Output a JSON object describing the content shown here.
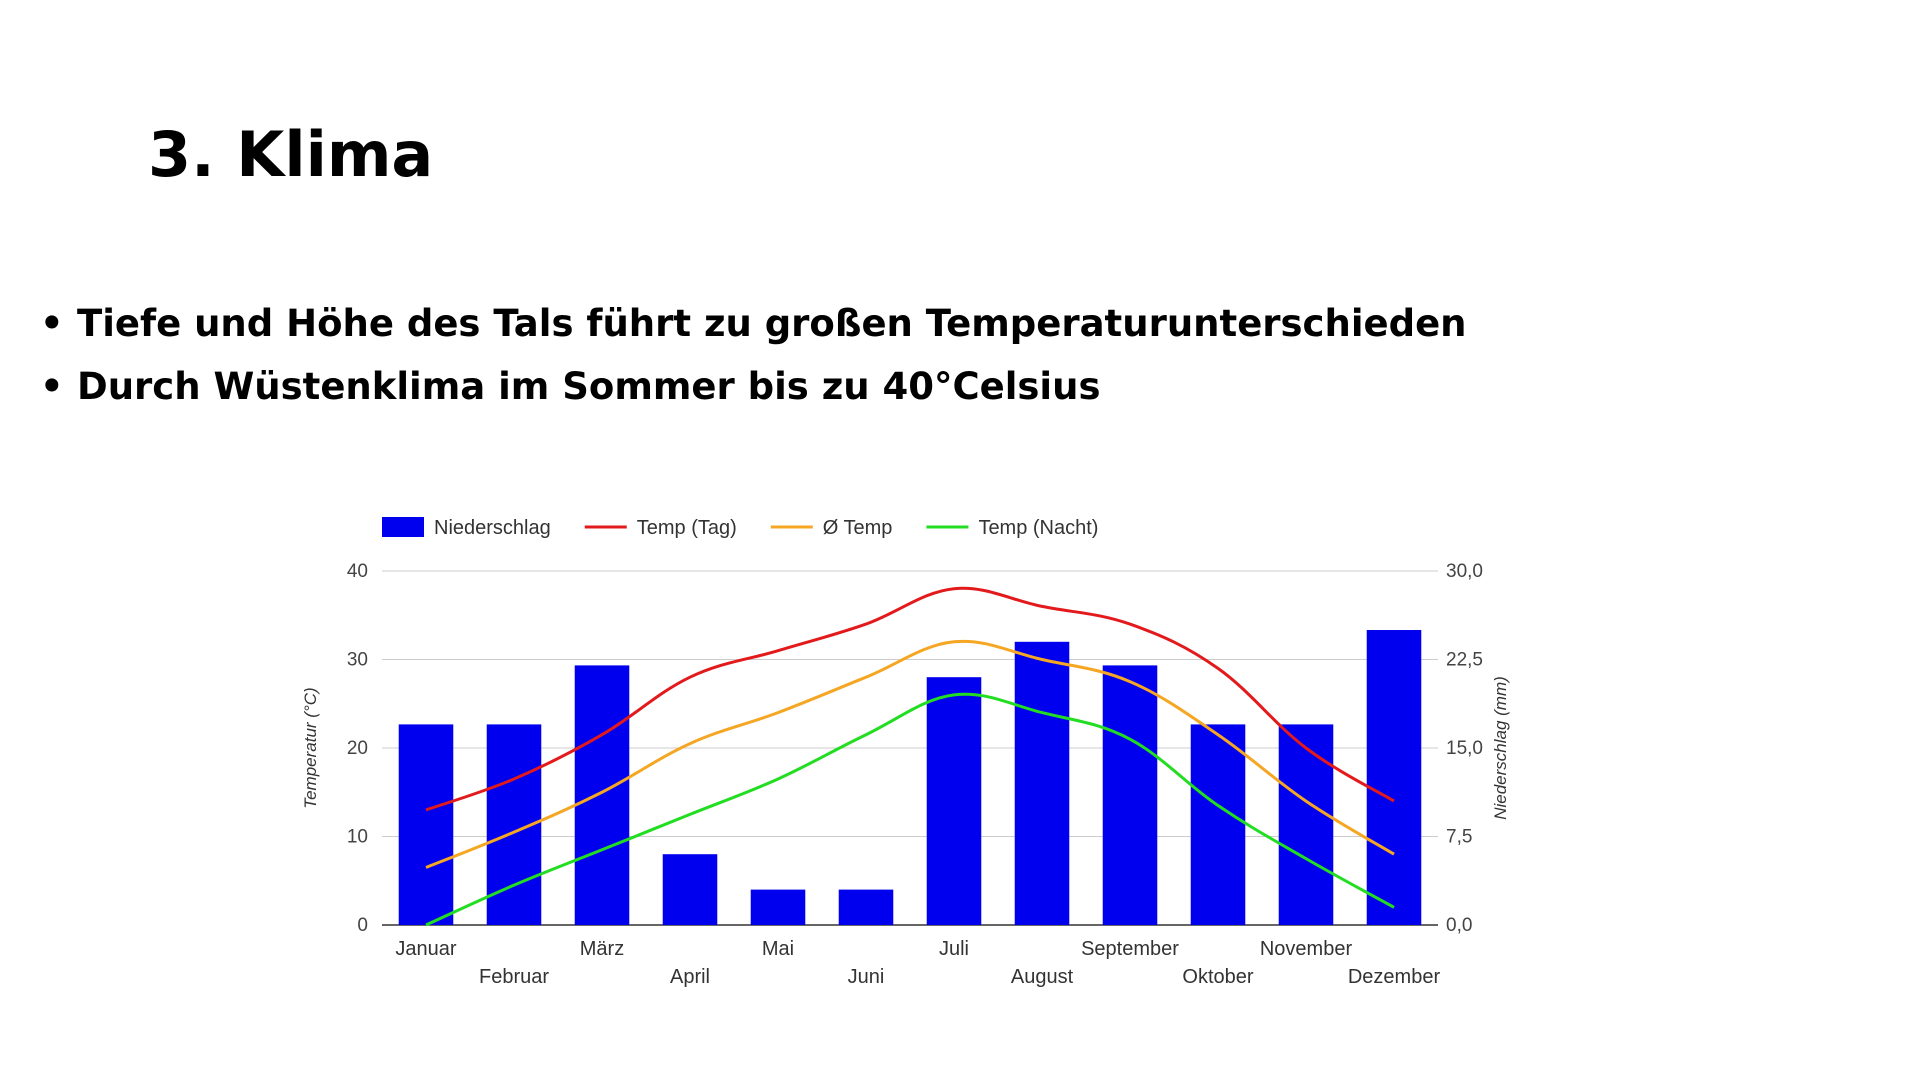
{
  "slide": {
    "title": "3. Klima",
    "bullets": [
      "Tiefe und Höhe des Tals führt zu großen Temperaturunterschieden",
      "Durch Wüstenklima im Sommer bis zu 40°Celsius"
    ],
    "bullet_symbol": "•"
  },
  "chart_data": {
    "type": "bar",
    "categories": [
      "Januar",
      "Februar",
      "März",
      "April",
      "Mai",
      "Juni",
      "Juli",
      "August",
      "September",
      "Oktober",
      "November",
      "Dezember"
    ],
    "series": [
      {
        "name": "Niederschlag",
        "type": "bar",
        "axis": "right",
        "color": "#0000ee",
        "values": [
          17,
          17,
          22,
          6,
          3,
          3,
          21,
          24,
          22,
          17,
          17,
          25
        ]
      },
      {
        "name": "Temp (Tag)",
        "type": "line",
        "axis": "left",
        "color": "#e31a1c",
        "values": [
          13,
          16.5,
          21.5,
          28,
          31,
          34,
          38,
          36,
          34,
          29,
          20,
          14
        ]
      },
      {
        "name": "Ø Temp",
        "type": "line",
        "axis": "left",
        "color": "#f5a623",
        "values": [
          6.5,
          10.5,
          15,
          20.5,
          24,
          28,
          32,
          30,
          27.5,
          21.5,
          14,
          8
        ]
      },
      {
        "name": "Temp (Nacht)",
        "type": "line",
        "axis": "left",
        "color": "#22dd22",
        "values": [
          0,
          4.5,
          8.5,
          12.5,
          16.5,
          21.5,
          26,
          24,
          21,
          13.5,
          7.5,
          2
        ]
      }
    ],
    "ylabel": "Temperatur (°C)",
    "ylabel_right": "Niederschlag (mm)",
    "ylim": [
      0,
      40
    ],
    "ylim_right": [
      0,
      30
    ],
    "yticks": [
      "0",
      "10",
      "20",
      "30",
      "40"
    ],
    "yticks_right": [
      "0,0",
      "7,5",
      "15,0",
      "22,5",
      "30,0"
    ],
    "grid": true,
    "legend": "top"
  }
}
